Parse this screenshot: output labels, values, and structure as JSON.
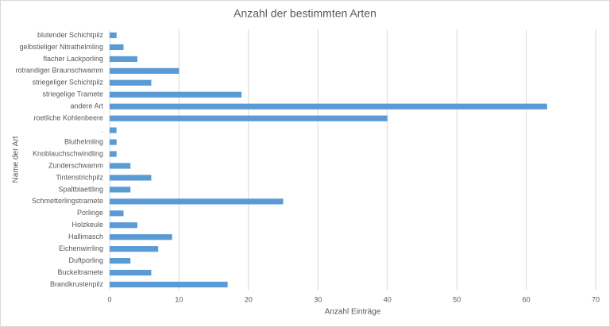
{
  "chart_data": {
    "type": "hbar",
    "title": "Anzahl der bestimmten Arten",
    "x_label": "Anzahl Einträge",
    "y_label": "Name der Art",
    "categories": [
      "blutender Schichtpilz",
      "gelbstieliger Nitrathelmling",
      "flacher Lackporling",
      "rotrandiger Braunschwamm",
      "striegeliger Schichtpilz",
      "striegelige Tramete",
      "andere Art",
      "roetliche Kohlenbeere",
      ".",
      "Bluthelmling",
      "Knoblauchschwindling",
      "Zunderschwamm",
      "Tintenstrichpilz",
      "Spaltblaettling",
      "Schmetterlingstramete",
      "Porlinge",
      "Holzkeule",
      "Hallimasch",
      "Eichenwirrling",
      "Duftporling",
      "Buckeltramete",
      "Brandkrustenpilz"
    ],
    "values": [
      1,
      2,
      4,
      10,
      6,
      19,
      63,
      40,
      1,
      1,
      1,
      3,
      6,
      3,
      25,
      2,
      4,
      9,
      7,
      3,
      6,
      17
    ],
    "color": "#5b9bd5",
    "xlim": [
      0,
      70
    ],
    "xticks": [
      0,
      10,
      20,
      30,
      40,
      50,
      60,
      70
    ],
    "grid": true
  }
}
